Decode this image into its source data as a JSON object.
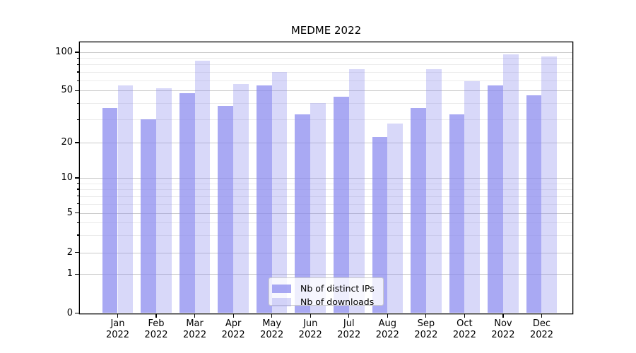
{
  "figure": {
    "background": "#ffffff"
  },
  "chart_data": {
    "type": "bar",
    "title": "MEDME 2022",
    "xlabel": "",
    "ylabel": "",
    "categories": [
      "Jan 2022",
      "Feb 2022",
      "Mar 2022",
      "Apr 2022",
      "May 2022",
      "Jun 2022",
      "Jul 2022",
      "Aug 2022",
      "Sep 2022",
      "Oct 2022",
      "Nov 2022",
      "Dec 2022"
    ],
    "series": [
      {
        "name": "Nb of distinct IPs",
        "values": [
          37,
          30,
          48,
          38,
          55,
          33,
          45,
          22,
          37,
          33,
          55,
          46
        ],
        "fill": "rgba(136,136,238,0.72)",
        "color_hex": "#a9a9f5"
      },
      {
        "name": "Nb of downloads",
        "values": [
          55,
          52,
          86,
          56,
          70,
          40,
          74,
          28,
          74,
          59,
          96,
          93
        ],
        "fill": "rgba(136,136,238,0.33)",
        "color_hex": "#d8d8f9"
      }
    ],
    "y_axis": {
      "scale": "log-like",
      "major_ticks": [
        0,
        1,
        2,
        5,
        10,
        20,
        50,
        100
      ],
      "minor_gridlines": [
        3,
        4,
        6,
        7,
        8,
        9,
        30,
        40,
        60,
        70,
        80,
        90
      ],
      "ylim": [
        0,
        119
      ]
    },
    "grid": "horizontal major+minor",
    "legend": {
      "position": "lower center"
    },
    "colors": {
      "bar_base": "#8888ee",
      "grid_major": "#c9c9c9",
      "grid_minor": "#ebebeb",
      "axis": "#000000",
      "legend_border": "#cccccc",
      "legend_bg": "rgba(255,255,255,0.8)"
    }
  }
}
